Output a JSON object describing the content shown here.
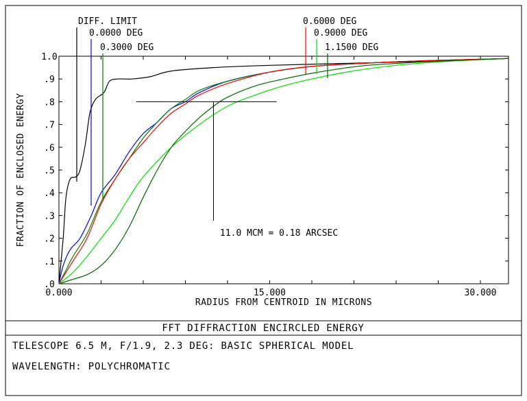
{
  "chart_data": {
    "type": "line",
    "xlabel": "RADIUS FROM CENTROID IN MICRONS",
    "ylabel": "FRACTION OF ENCLOSED ENERGY",
    "xlim": [
      0,
      32
    ],
    "ylim": [
      0,
      1.0
    ],
    "x_ticks": [
      "0.000",
      "15.000",
      "30.000"
    ],
    "y_ticks": [
      ".0",
      ".1",
      ".2",
      ".3",
      ".4",
      ".5",
      ".6",
      ".7",
      ".8",
      ".9",
      "1.0"
    ],
    "annotation": "11.0 MCM = 0.18 ARCSEC",
    "annotation_point": {
      "x": 11.0,
      "y": 0.8
    },
    "series": [
      {
        "name": "DIFF. LIMIT",
        "color": "#000000",
        "points": [
          [
            0,
            0
          ],
          [
            0.3,
            0.2
          ],
          [
            0.5,
            0.38
          ],
          [
            0.8,
            0.46
          ],
          [
            1.2,
            0.47
          ],
          [
            1.5,
            0.5
          ],
          [
            1.9,
            0.62
          ],
          [
            2.2,
            0.75
          ],
          [
            2.6,
            0.81
          ],
          [
            3.2,
            0.84
          ],
          [
            3.6,
            0.89
          ],
          [
            4.2,
            0.9
          ],
          [
            5.2,
            0.9
          ],
          [
            6.5,
            0.91
          ],
          [
            8,
            0.935
          ],
          [
            11,
            0.95
          ],
          [
            15,
            0.96
          ],
          [
            20,
            0.968
          ],
          [
            25,
            0.975
          ],
          [
            32,
            0.99
          ]
        ]
      },
      {
        "name": "0.0000 DEG",
        "color": "#0000ff",
        "points": [
          [
            0,
            0
          ],
          [
            0.3,
            0.08
          ],
          [
            0.8,
            0.15
          ],
          [
            1.5,
            0.2
          ],
          [
            2.3,
            0.3
          ],
          [
            3,
            0.4
          ],
          [
            4,
            0.48
          ],
          [
            5,
            0.58
          ],
          [
            6,
            0.66
          ],
          [
            7,
            0.71
          ],
          [
            8,
            0.77
          ],
          [
            9,
            0.8
          ],
          [
            10,
            0.84
          ],
          [
            12,
            0.89
          ],
          [
            15,
            0.93
          ],
          [
            18,
            0.955
          ],
          [
            22,
            0.97
          ],
          [
            26,
            0.98
          ],
          [
            32,
            0.99
          ]
        ]
      },
      {
        "name": "0.3000 DEG",
        "color": "#008000",
        "points": [
          [
            0,
            0
          ],
          [
            0.5,
            0.06
          ],
          [
            1,
            0.12
          ],
          [
            2,
            0.22
          ],
          [
            3,
            0.36
          ],
          [
            4,
            0.46
          ],
          [
            5,
            0.55
          ],
          [
            6,
            0.64
          ],
          [
            7,
            0.71
          ],
          [
            8,
            0.77
          ],
          [
            9,
            0.81
          ],
          [
            10,
            0.85
          ],
          [
            12,
            0.89
          ],
          [
            15,
            0.93
          ],
          [
            18,
            0.955
          ],
          [
            22,
            0.97
          ],
          [
            26,
            0.98
          ],
          [
            32,
            0.99
          ]
        ]
      },
      {
        "name": "0.6000 DEG",
        "color": "#ff0000",
        "points": [
          [
            0,
            0
          ],
          [
            0.5,
            0.05
          ],
          [
            1,
            0.1
          ],
          [
            2,
            0.2
          ],
          [
            3,
            0.35
          ],
          [
            4,
            0.46
          ],
          [
            5,
            0.55
          ],
          [
            6,
            0.62
          ],
          [
            7,
            0.69
          ],
          [
            8,
            0.75
          ],
          [
            9,
            0.79
          ],
          [
            10,
            0.83
          ],
          [
            12,
            0.88
          ],
          [
            15,
            0.93
          ],
          [
            18,
            0.955
          ],
          [
            22,
            0.97
          ],
          [
            26,
            0.98
          ],
          [
            32,
            0.99
          ]
        ]
      },
      {
        "name": "0.9000 DEG",
        "color": "#00e000",
        "points": [
          [
            0,
            0
          ],
          [
            1,
            0.05
          ],
          [
            2,
            0.12
          ],
          [
            3,
            0.2
          ],
          [
            4,
            0.28
          ],
          [
            5,
            0.38
          ],
          [
            6,
            0.47
          ],
          [
            8,
            0.6
          ],
          [
            10,
            0.7
          ],
          [
            12,
            0.78
          ],
          [
            14,
            0.83
          ],
          [
            16,
            0.87
          ],
          [
            18,
            0.9
          ],
          [
            20,
            0.925
          ],
          [
            22,
            0.945
          ],
          [
            24,
            0.96
          ],
          [
            27,
            0.975
          ],
          [
            30,
            0.985
          ],
          [
            32,
            0.99
          ]
        ]
      },
      {
        "name": "1.1500 DEG",
        "color": "#006400",
        "points": [
          [
            0,
            0
          ],
          [
            1,
            0.02
          ],
          [
            2,
            0.04
          ],
          [
            3,
            0.08
          ],
          [
            4,
            0.15
          ],
          [
            5,
            0.25
          ],
          [
            6,
            0.38
          ],
          [
            7,
            0.5
          ],
          [
            8,
            0.6
          ],
          [
            9,
            0.67
          ],
          [
            10,
            0.73
          ],
          [
            11,
            0.78
          ],
          [
            12,
            0.82
          ],
          [
            14,
            0.87
          ],
          [
            16,
            0.9
          ],
          [
            18,
            0.925
          ],
          [
            20,
            0.945
          ],
          [
            22,
            0.96
          ],
          [
            26,
            0.975
          ],
          [
            32,
            0.99
          ]
        ]
      }
    ],
    "legend_labels": [
      {
        "text": "DIFF. LIMIT",
        "series": 0
      },
      {
        "text": "0.0000 DEG",
        "series": 1
      },
      {
        "text": "0.3000 DEG",
        "series": 2
      },
      {
        "text": "0.6000 DEG",
        "series": 3
      },
      {
        "text": "0.9000 DEG",
        "series": 4
      },
      {
        "text": "1.1500 DEG",
        "series": 5
      }
    ]
  },
  "footer": {
    "title": "FFT DIFFRACTION ENCIRCLED ENERGY",
    "line1": "TELESCOPE 6.5 M, F/1.9, 2.3 DEG: BASIC SPHERICAL MODEL",
    "line2": "WAVELENGTH: POLYCHROMATIC"
  }
}
